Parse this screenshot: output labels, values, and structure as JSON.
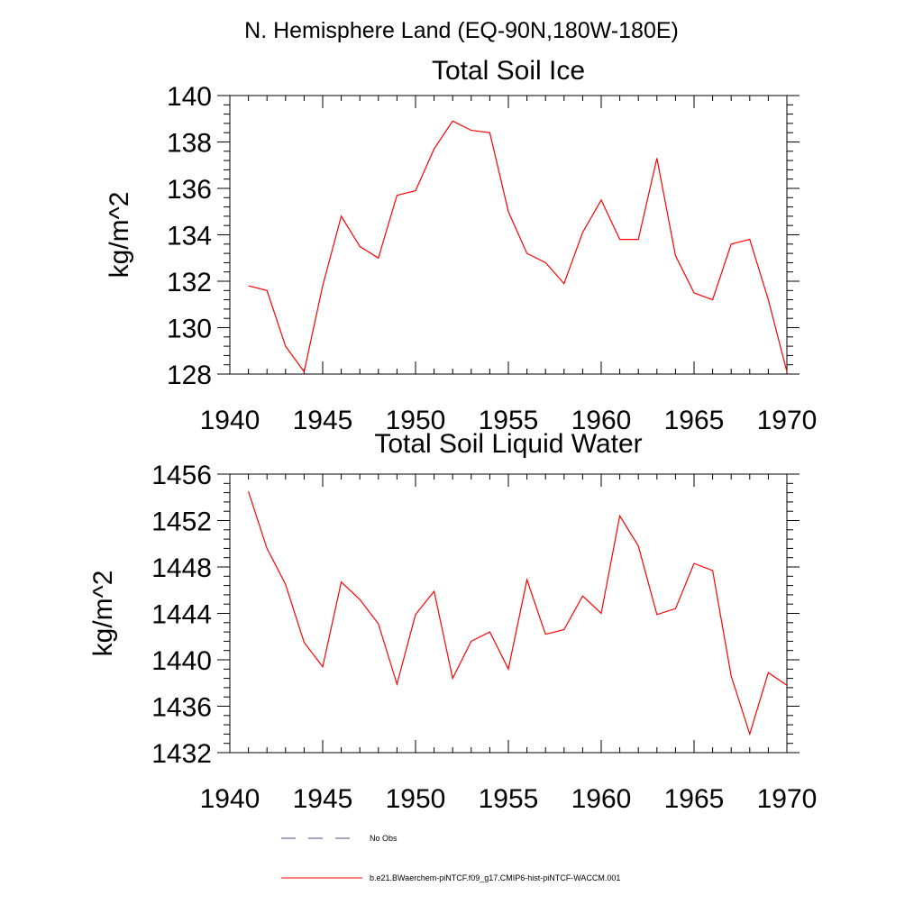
{
  "figure": {
    "title": "N. Hemisphere Land (EQ-90N,180W-180E)"
  },
  "chart_data": [
    {
      "type": "line",
      "title": "Total Soil Ice",
      "xlabel": "",
      "ylabel": "kg/m^2",
      "xlim": [
        1940,
        1970
      ],
      "ylim": [
        128,
        140
      ],
      "xticks": [
        1940,
        1945,
        1950,
        1955,
        1960,
        1965,
        1970
      ],
      "yticks": [
        128,
        130,
        132,
        134,
        136,
        138,
        140
      ],
      "grid": false,
      "series": [
        {
          "color": "#ff0000",
          "x": [
            1941,
            1942,
            1943,
            1944,
            1945,
            1946,
            1947,
            1948,
            1949,
            1950,
            1951,
            1952,
            1953,
            1954,
            1955,
            1956,
            1957,
            1958,
            1959,
            1960,
            1961,
            1962,
            1963,
            1964,
            1965,
            1966,
            1967,
            1968,
            1969,
            1970
          ],
          "values": [
            131.8,
            131.6,
            129.2,
            128.1,
            131.8,
            134.8,
            133.5,
            133.0,
            135.7,
            135.9,
            137.7,
            138.9,
            138.5,
            138.4,
            135.0,
            133.2,
            132.8,
            131.9,
            134.1,
            135.5,
            133.8,
            133.8,
            137.3,
            133.1,
            131.5,
            131.2,
            133.6,
            133.8,
            131.2,
            128.1
          ]
        }
      ]
    },
    {
      "type": "line",
      "title": "Total Soil Liquid Water",
      "xlabel": "",
      "ylabel": "kg/m^2",
      "xlim": [
        1940,
        1970
      ],
      "ylim": [
        1432,
        1456
      ],
      "xticks": [
        1940,
        1945,
        1950,
        1955,
        1960,
        1965,
        1970
      ],
      "yticks": [
        1432,
        1436,
        1440,
        1444,
        1448,
        1452,
        1456
      ],
      "grid": false,
      "series": [
        {
          "color": "#ff0000",
          "x": [
            1941,
            1942,
            1943,
            1944,
            1945,
            1946,
            1947,
            1948,
            1949,
            1950,
            1951,
            1952,
            1953,
            1954,
            1955,
            1956,
            1957,
            1958,
            1959,
            1960,
            1961,
            1962,
            1963,
            1964,
            1965,
            1966,
            1967,
            1968,
            1969,
            1970
          ],
          "values": [
            1454.5,
            1449.6,
            1446.5,
            1441.5,
            1439.4,
            1446.7,
            1445.2,
            1443.1,
            1437.9,
            1443.9,
            1445.9,
            1438.4,
            1441.6,
            1442.4,
            1439.2,
            1446.9,
            1442.2,
            1442.6,
            1445.5,
            1444.0,
            1452.4,
            1449.8,
            1443.9,
            1444.4,
            1448.3,
            1447.7,
            1438.6,
            1433.6,
            1438.9,
            1437.8
          ]
        }
      ]
    }
  ],
  "legend": {
    "placement": "bottom",
    "items": [
      {
        "label": "No Obs",
        "style": "dashed",
        "color": "#4a4a8a"
      },
      {
        "label": "b.e21.BWaerchem-piNTCF.f09_g17.CMIP6-hist-piNTCF-WACCM.001",
        "style": "solid",
        "color": "#ff0000"
      }
    ]
  }
}
